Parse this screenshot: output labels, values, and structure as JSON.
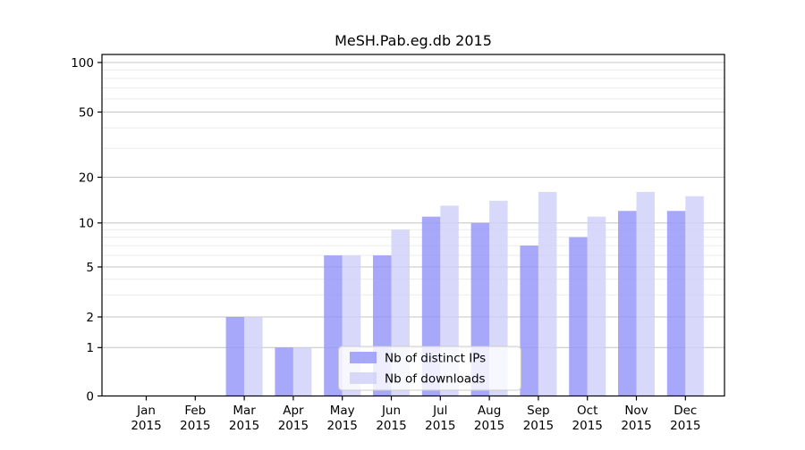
{
  "page": {
    "background": "#ffffff"
  },
  "chart_data": {
    "type": "bar",
    "title": "MeSH.Pab.eg.db 2015",
    "categories": [
      "Jan",
      "Feb",
      "Mar",
      "Apr",
      "May",
      "Jun",
      "Jul",
      "Aug",
      "Sep",
      "Oct",
      "Nov",
      "Dec"
    ],
    "category_year": "2015",
    "series": [
      {
        "name": "Nb of distinct IPs",
        "color": "#9595f9",
        "displayed_color": "#a8a8fa",
        "values": [
          0,
          0,
          2,
          1,
          6,
          6,
          11,
          10,
          7,
          8,
          12,
          12
        ]
      },
      {
        "name": "Nb of downloads",
        "color": "#cfcff9",
        "displayed_color": "#d8d8fa",
        "values": [
          0,
          0,
          2,
          1,
          6,
          9,
          13,
          14,
          16,
          11,
          16,
          15
        ]
      }
    ],
    "xlabel": "",
    "ylabel": "",
    "y_axis": {
      "scale": "log-like with zero baseline",
      "ticks": [
        0,
        1,
        2,
        5,
        10,
        20,
        50,
        100
      ],
      "minor_ticks": [
        3,
        4,
        6,
        7,
        8,
        9,
        30,
        40,
        60,
        70,
        80,
        90
      ],
      "ylim": [
        0,
        115
      ]
    },
    "grid": "major and minor horizontal gridlines",
    "legend": {
      "position": "inside lower center",
      "entries": [
        "Nb of distinct IPs",
        "Nb of downloads"
      ]
    }
  },
  "colors": {
    "bar_opacity": 0.82,
    "major_grid": "#c4c4c4",
    "minor_grid": "#ececec",
    "axis": "#000000",
    "legend_border": "#cccccc",
    "legend_background": "rgba(255,255,255,0.8)"
  }
}
